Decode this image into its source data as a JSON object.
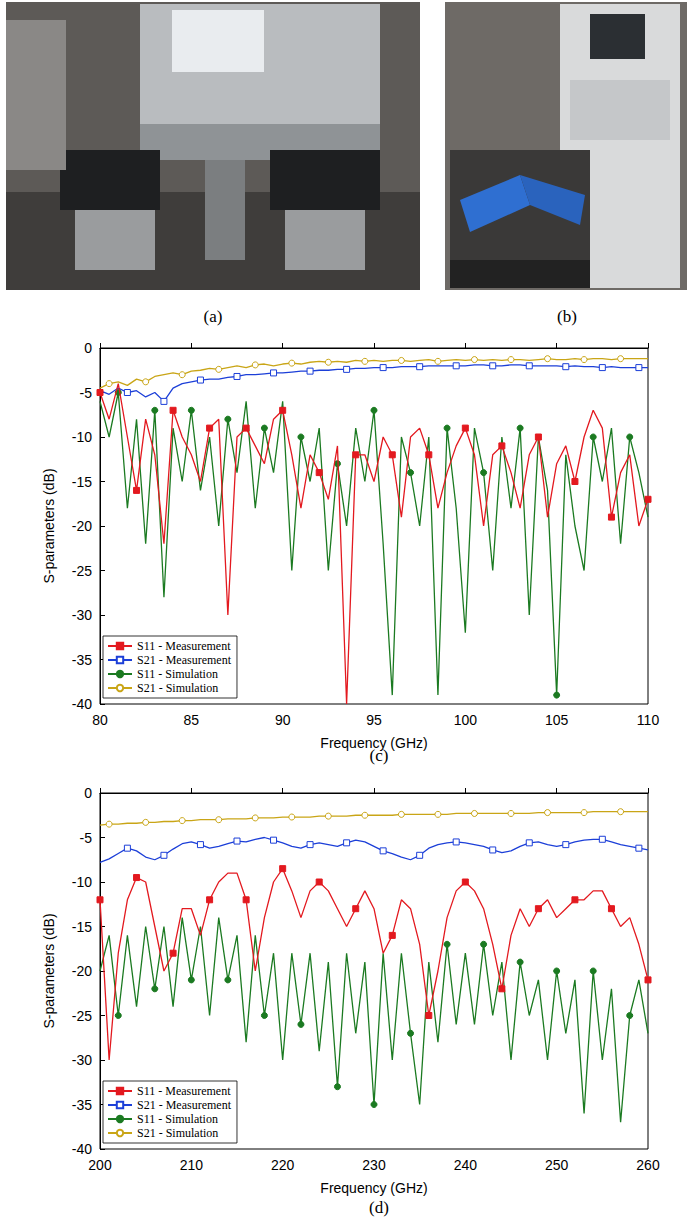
{
  "photos": [
    {
      "label": "(a)"
    },
    {
      "label": "(b)"
    }
  ],
  "chart_data": [
    {
      "type": "line",
      "title": "(c)",
      "x_label": "Frequency (GHz)",
      "y_label": "S-parameters (dB)",
      "xlim": [
        80,
        110
      ],
      "xticks": [
        80,
        85,
        90,
        95,
        100,
        105,
        110
      ],
      "ylim": [
        -40,
        0
      ],
      "yticks": [
        -40,
        -35,
        -30,
        -25,
        -20,
        -15,
        -10,
        -5,
        0
      ],
      "legend": "lower left",
      "x": [
        80,
        80.5,
        81,
        81.5,
        82,
        82.5,
        83,
        83.5,
        84,
        84.5,
        85,
        85.5,
        86,
        86.5,
        87,
        87.5,
        88,
        88.5,
        89,
        89.5,
        90,
        90.5,
        91,
        91.5,
        92,
        92.5,
        93,
        93.5,
        94,
        94.5,
        95,
        95.5,
        96,
        96.5,
        97,
        97.5,
        98,
        98.5,
        99,
        99.5,
        100,
        100.5,
        101,
        101.5,
        102,
        102.5,
        103,
        103.5,
        104,
        104.5,
        105,
        105.5,
        106,
        106.5,
        107,
        107.5,
        108,
        108.5,
        109,
        109.5,
        110
      ],
      "series": [
        {
          "name": "S11 - Measurement",
          "color": "#e3191f",
          "marker": "square",
          "values": [
            -5,
            -8,
            -4,
            -10,
            -16,
            -8,
            -12,
            -22,
            -7,
            -10,
            -12,
            -15,
            -9,
            -8,
            -30,
            -10,
            -9,
            -11,
            -13,
            -8,
            -7,
            -12,
            -18,
            -12,
            -14,
            -17,
            -11,
            -40,
            -12,
            -12,
            -15,
            -10,
            -12,
            -19,
            -10,
            -9,
            -12,
            -18,
            -14,
            -11,
            -9,
            -12,
            -20,
            -12,
            -11,
            -14,
            -18,
            -12,
            -10,
            -19,
            -13,
            -11,
            -15,
            -10,
            -7,
            -9,
            -19,
            -14,
            -12,
            -20,
            -17
          ]
        },
        {
          "name": "S21 - Measurement",
          "color": "#1c3fd8",
          "marker": "open-square",
          "values": [
            -4.8,
            -5.2,
            -4.5,
            -5.0,
            -4.8,
            -5.5,
            -5.0,
            -6.0,
            -4.5,
            -4.0,
            -3.8,
            -3.6,
            -3.5,
            -3.5,
            -3.3,
            -3.2,
            -3.0,
            -3.0,
            -2.9,
            -2.8,
            -2.8,
            -2.7,
            -2.6,
            -2.6,
            -2.5,
            -2.5,
            -2.4,
            -2.4,
            -2.3,
            -2.3,
            -2.2,
            -2.2,
            -2.2,
            -2.1,
            -2.1,
            -2.1,
            -2.0,
            -2.0,
            -2.0,
            -2.0,
            -2.0,
            -1.9,
            -1.9,
            -2.0,
            -2.0,
            -1.9,
            -1.9,
            -2.0,
            -2.0,
            -2.0,
            -2.0,
            -2.1,
            -2.0,
            -2.1,
            -2.1,
            -2.2,
            -2.1,
            -2.2,
            -2.2,
            -2.2,
            -2.2
          ]
        },
        {
          "name": "S11 - Simulation",
          "color": "#1b7a21",
          "marker": "circle",
          "values": [
            -6,
            -10,
            -5,
            -18,
            -8,
            -22,
            -7,
            -28,
            -9,
            -15,
            -7,
            -16,
            -10,
            -20,
            -8,
            -14,
            -6,
            -18,
            -9,
            -14,
            -6,
            -25,
            -10,
            -15,
            -9,
            -25,
            -13,
            -20,
            -9,
            -15,
            -7,
            -22,
            -39,
            -10,
            -14,
            -20,
            -10,
            -39,
            -9,
            -18,
            -32,
            -9,
            -14,
            -25,
            -10,
            -18,
            -9,
            -30,
            -10,
            -16,
            -39,
            -12,
            -20,
            -25,
            -10,
            -15,
            -9,
            -22,
            -10,
            -14,
            -19
          ]
        },
        {
          "name": "S21 - Simulation",
          "color": "#c9a516",
          "marker": "open-circle",
          "values": [
            -4.5,
            -4.0,
            -3.8,
            -4.2,
            -3.5,
            -3.8,
            -3.2,
            -3.0,
            -2.8,
            -3.0,
            -2.6,
            -2.5,
            -2.3,
            -2.4,
            -2.2,
            -2.0,
            -2.2,
            -1.9,
            -1.8,
            -2.0,
            -1.8,
            -1.7,
            -1.8,
            -1.6,
            -1.5,
            -1.6,
            -1.5,
            -1.6,
            -1.4,
            -1.5,
            -1.4,
            -1.5,
            -1.4,
            -1.4,
            -1.5,
            -1.4,
            -1.3,
            -1.5,
            -1.4,
            -1.3,
            -1.4,
            -1.3,
            -1.4,
            -1.3,
            -1.4,
            -1.3,
            -1.3,
            -1.4,
            -1.3,
            -1.2,
            -1.3,
            -1.3,
            -1.2,
            -1.3,
            -1.2,
            -1.2,
            -1.3,
            -1.2,
            -1.2,
            -1.2,
            -1.2
          ]
        }
      ]
    },
    {
      "type": "line",
      "title": "(d)",
      "x_label": "Frequency (GHz)",
      "y_label": "S-parameters (dB)",
      "xlim": [
        200,
        260
      ],
      "xticks": [
        200,
        210,
        220,
        230,
        240,
        250,
        260
      ],
      "ylim": [
        -40,
        0
      ],
      "yticks": [
        -40,
        -35,
        -30,
        -25,
        -20,
        -15,
        -10,
        -5,
        0
      ],
      "legend": "lower left",
      "x": [
        200,
        201,
        202,
        203,
        204,
        205,
        206,
        207,
        208,
        209,
        210,
        211,
        212,
        213,
        214,
        215,
        216,
        217,
        218,
        219,
        220,
        221,
        222,
        223,
        224,
        225,
        226,
        227,
        228,
        229,
        230,
        231,
        232,
        233,
        234,
        235,
        236,
        237,
        238,
        239,
        240,
        241,
        242,
        243,
        244,
        245,
        246,
        247,
        248,
        249,
        250,
        251,
        252,
        253,
        254,
        255,
        256,
        257,
        258,
        259,
        260
      ],
      "series": [
        {
          "name": "S11 - Measurement",
          "color": "#e3191f",
          "marker": "square",
          "values": [
            -12,
            -30,
            -18,
            -12,
            -9.5,
            -10,
            -15,
            -20,
            -18,
            -13,
            -13,
            -16,
            -12,
            -10,
            -9,
            -9,
            -12,
            -20,
            -14,
            -10,
            -8.5,
            -11,
            -14,
            -11,
            -10,
            -11,
            -13,
            -15,
            -13,
            -11,
            -13,
            -18,
            -16,
            -12,
            -13,
            -17,
            -25,
            -20,
            -14,
            -11,
            -10,
            -11,
            -13,
            -17,
            -22,
            -16,
            -13,
            -15,
            -13,
            -12,
            -14,
            -13,
            -12,
            -12,
            -11,
            -11,
            -13,
            -15,
            -14,
            -17,
            -21
          ]
        },
        {
          "name": "S21 - Measurement",
          "color": "#1c3fd8",
          "marker": "open-square",
          "values": [
            -7.8,
            -7.4,
            -6.8,
            -6.2,
            -6.5,
            -7.2,
            -7.5,
            -7.0,
            -6.3,
            -5.7,
            -5.5,
            -5.8,
            -6.2,
            -6.0,
            -5.7,
            -5.4,
            -5.5,
            -5.2,
            -5.0,
            -5.3,
            -5.6,
            -6.0,
            -6.2,
            -5.8,
            -5.6,
            -5.8,
            -6.0,
            -5.6,
            -5.3,
            -5.5,
            -6.0,
            -6.5,
            -6.8,
            -7.2,
            -7.5,
            -7.0,
            -6.2,
            -5.8,
            -5.6,
            -5.5,
            -5.6,
            -5.8,
            -6.0,
            -6.4,
            -6.7,
            -6.5,
            -6.0,
            -5.6,
            -5.5,
            -5.8,
            -6.0,
            -5.8,
            -5.5,
            -5.3,
            -5.2,
            -5.2,
            -5.5,
            -5.8,
            -6.0,
            -6.2,
            -6.4
          ]
        },
        {
          "name": "S11 - Simulation",
          "color": "#1b7a21",
          "marker": "circle",
          "values": [
            -20,
            -16,
            -25,
            -16,
            -24,
            -15,
            -22,
            -15,
            -24,
            -14,
            -21,
            -15,
            -25,
            -14,
            -21,
            -16,
            -28,
            -16,
            -25,
            -18,
            -30,
            -18,
            -26,
            -18,
            -29,
            -19,
            -33,
            -18,
            -27,
            -19,
            -35,
            -18,
            -30,
            -18,
            -27,
            -35,
            -19,
            -28,
            -17,
            -26,
            -18,
            -26,
            -17,
            -25,
            -19,
            -30,
            -19,
            -25,
            -21,
            -30,
            -20,
            -27,
            -21,
            -36,
            -20,
            -30,
            -22,
            -37,
            -25,
            -21,
            -27
          ]
        },
        {
          "name": "S21 - Simulation",
          "color": "#c9a516",
          "marker": "open-circle",
          "values": [
            -3.6,
            -3.5,
            -3.5,
            -3.4,
            -3.4,
            -3.3,
            -3.3,
            -3.2,
            -3.2,
            -3.1,
            -3.1,
            -3.0,
            -3.0,
            -3.0,
            -2.9,
            -2.9,
            -2.9,
            -2.8,
            -2.8,
            -2.8,
            -2.7,
            -2.7,
            -2.7,
            -2.7,
            -2.6,
            -2.6,
            -2.6,
            -2.6,
            -2.5,
            -2.5,
            -2.5,
            -2.5,
            -2.5,
            -2.4,
            -2.4,
            -2.4,
            -2.4,
            -2.4,
            -2.4,
            -2.3,
            -2.3,
            -2.3,
            -2.3,
            -2.3,
            -2.3,
            -2.3,
            -2.3,
            -2.3,
            -2.2,
            -2.2,
            -2.2,
            -2.2,
            -2.2,
            -2.2,
            -2.1,
            -2.1,
            -2.1,
            -2.1,
            -2.1,
            -2.1,
            -2.1
          ]
        }
      ]
    }
  ]
}
